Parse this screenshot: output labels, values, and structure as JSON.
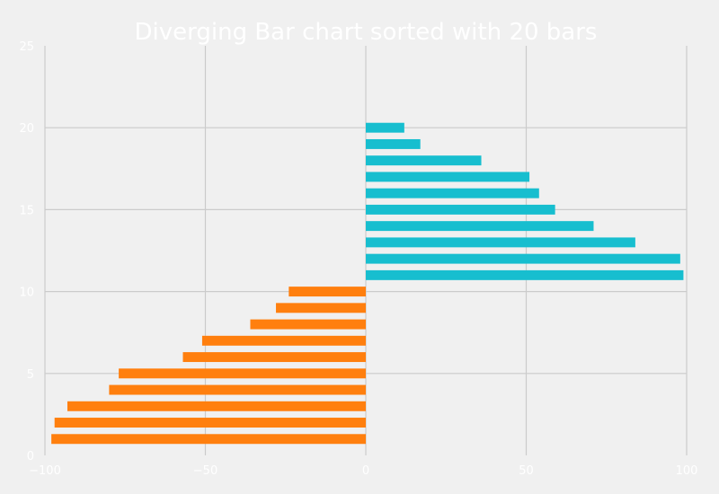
{
  "chart_data": {
    "type": "bar",
    "orientation": "horizontal",
    "title": "Diverging Bar chart sorted with 20 bars",
    "xlabel": "",
    "ylabel": "",
    "xlim": [
      -100,
      100
    ],
    "ylim": [
      0,
      25
    ],
    "x_ticks": [
      -100,
      -50,
      0,
      50,
      100
    ],
    "x_tick_labels": [
      "−100",
      "−50",
      "0",
      "50",
      "100"
    ],
    "y_ticks": [
      0,
      5,
      10,
      15,
      20,
      25
    ],
    "y_tick_labels": [
      "0",
      "5",
      "10",
      "15",
      "20",
      "25"
    ],
    "grid": true,
    "positive_color": "#17becf",
    "negative_color": "#ff7f0e",
    "positions": [
      1,
      2,
      3,
      4,
      5,
      6,
      7,
      8,
      9,
      10,
      11,
      12,
      13,
      14,
      15,
      16,
      17,
      18,
      19,
      20
    ],
    "values": [
      -98,
      -97,
      -93,
      -80,
      -77,
      -57,
      -51,
      -36,
      -28,
      -24,
      99,
      98,
      84,
      71,
      59,
      54,
      51,
      36,
      17,
      12
    ]
  }
}
